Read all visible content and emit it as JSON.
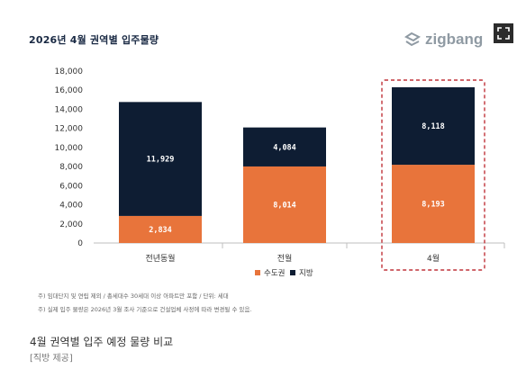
{
  "chart_title": "2026년 4월 권역별 입주물량",
  "brand_name": "zigbang",
  "notes": [
    "주) 임대단지 및 연립 제외 / 총세대수 30세대 이상 아파트만 포함 / 단위: 세대",
    "주) 실제 입주 물량은 2026년 3월 조사 기준으로 건설업체 사정에 따라 변경될 수 있음."
  ],
  "caption": "4월 권역별 입주 예정 물량 비교",
  "credit": "[직방 제공]",
  "colors": {
    "metro": "#e8743b",
    "regional": "#0e1d33",
    "highlight": "#c0343a"
  },
  "chart_data": {
    "type": "bar",
    "stacked": true,
    "categories": [
      "전년동월",
      "전월",
      "4월"
    ],
    "series": [
      {
        "name": "수도권",
        "values": [
          2834,
          8014,
          8193
        ]
      },
      {
        "name": "지방",
        "values": [
          11929,
          4084,
          8118
        ]
      }
    ],
    "value_labels": {
      "수도권": [
        "2,834",
        "8,014",
        "8,193"
      ],
      "지방": [
        "11,929",
        "4,084",
        "8,118"
      ]
    },
    "y_ticks": [
      "0",
      "2,000",
      "4,000",
      "6,000",
      "8,000",
      "10,000",
      "12,000",
      "14,000",
      "16,000",
      "18,000"
    ],
    "ylim": [
      0,
      18000
    ],
    "highlight_category": "4월",
    "legend_position": "bottom",
    "grid": false
  }
}
